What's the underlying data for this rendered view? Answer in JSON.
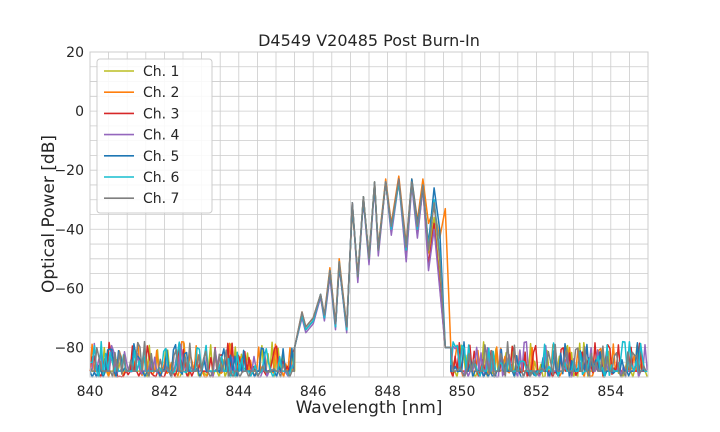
{
  "chart_data": {
    "type": "line",
    "title": "D4549 V20485 Post Burn-In",
    "xlabel": "Wavelength [nm]",
    "ylabel": "Optical Power [dB]",
    "xlim": [
      840,
      855
    ],
    "ylim": [
      -90,
      20
    ],
    "x_ticks": [
      840,
      842,
      844,
      846,
      848,
      850,
      852,
      854
    ],
    "y_ticks": [
      -80,
      -60,
      -40,
      -20,
      0,
      20
    ],
    "grid": true,
    "legend_position": "top-left",
    "noise_floor_db": -80,
    "x": [
      840.0,
      845.5,
      845.7,
      845.8,
      846.0,
      846.2,
      846.3,
      846.45,
      846.6,
      846.7,
      846.9,
      847.05,
      847.2,
      847.35,
      847.5,
      847.65,
      847.75,
      847.95,
      848.1,
      848.3,
      848.5,
      848.65,
      848.8,
      848.95,
      849.1,
      849.25,
      849.4,
      849.55,
      849.7,
      849.9,
      855.0
    ],
    "series": [
      {
        "name": "Ch. 1",
        "color": "#bcbd22",
        "values": [
          -80,
          -80,
          -69,
          -74,
          -71,
          -63,
          -70,
          -55,
          -73,
          -51,
          -74,
          -32,
          -56,
          -29,
          -50,
          -24,
          -47,
          -24,
          -40,
          -24,
          -48,
          -24,
          -40,
          -25,
          -48,
          -36,
          -56,
          -80,
          -80,
          -80,
          -80
        ]
      },
      {
        "name": "Ch. 2",
        "color": "#ff7f0e",
        "values": [
          -80,
          -80,
          -68,
          -73,
          -70,
          -62,
          -69,
          -53,
          -72,
          -50,
          -73,
          -33,
          -55,
          -30,
          -49,
          -25,
          -46,
          -23,
          -38,
          -22,
          -45,
          -23,
          -37,
          -23,
          -38,
          -33,
          -43,
          -33,
          -80,
          -80,
          -80
        ]
      },
      {
        "name": "Ch. 3",
        "color": "#d62728",
        "values": [
          -80,
          -80,
          -69,
          -74,
          -71,
          -63,
          -70,
          -55,
          -73,
          -52,
          -74,
          -31,
          -57,
          -29,
          -51,
          -24,
          -48,
          -24,
          -41,
          -23,
          -50,
          -24,
          -42,
          -26,
          -52,
          -38,
          -59,
          -80,
          -80,
          -80,
          -80
        ]
      },
      {
        "name": "Ch. 4",
        "color": "#9467bd",
        "values": [
          -80,
          -80,
          -70,
          -75,
          -72,
          -63,
          -71,
          -56,
          -74,
          -52,
          -75,
          -31,
          -58,
          -30,
          -52,
          -25,
          -49,
          -24,
          -42,
          -24,
          -51,
          -25,
          -43,
          -26,
          -54,
          -40,
          -60,
          -80,
          -80,
          -80,
          -80
        ]
      },
      {
        "name": "Ch. 5",
        "color": "#1f77b4",
        "values": [
          -80,
          -80,
          -69,
          -74,
          -71,
          -62,
          -70,
          -54,
          -73,
          -52,
          -74,
          -32,
          -56,
          -30,
          -50,
          -25,
          -47,
          -24,
          -39,
          -24,
          -46,
          -23,
          -38,
          -26,
          -45,
          -26,
          -40,
          -80,
          -80,
          -80,
          -80
        ]
      },
      {
        "name": "Ch. 6",
        "color": "#17becf",
        "values": [
          -80,
          -80,
          -69,
          -74,
          -71,
          -62,
          -70,
          -54,
          -73,
          -51,
          -74,
          -31,
          -56,
          -29,
          -50,
          -24,
          -47,
          -24,
          -40,
          -24,
          -47,
          -24,
          -40,
          -25,
          -46,
          -30,
          -48,
          -80,
          -80,
          -80,
          -80
        ]
      },
      {
        "name": "Ch. 7",
        "color": "#7f7f7f",
        "values": [
          -80,
          -80,
          -68,
          -73,
          -70,
          -62,
          -69,
          -54,
          -72,
          -51,
          -73,
          -31,
          -56,
          -29,
          -50,
          -24,
          -47,
          -24,
          -39,
          -23,
          -46,
          -24,
          -39,
          -25,
          -47,
          -31,
          -50,
          -80,
          -80,
          -80,
          -80
        ]
      }
    ]
  }
}
